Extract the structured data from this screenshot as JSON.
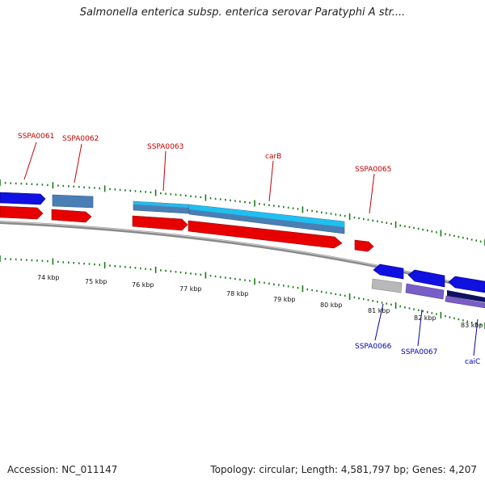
{
  "title": "Salmonella enterica subsp. enterica serovar Paratyphi A str....",
  "accession": "Accession: NC_011147",
  "topology": "Topology: circular; Length: 4,581,797 bp; Genes: 4,207",
  "ticks": [
    "74 kbp",
    "75 kbp",
    "76 kbp",
    "77 kbp",
    "78 kbp",
    "79 kbp",
    "80 kbp",
    "81 kbp",
    "82 kbp",
    "83 kbp"
  ],
  "gene_labels": {
    "top": [
      "SSPA0061",
      "SSPA0062",
      "SSPA0063",
      "carB",
      "SSPA0065"
    ],
    "bottom": [
      "SSPA0066",
      "SSPA0067",
      "caiC"
    ]
  },
  "colors": {
    "forward_cds": "#e80000",
    "reverse_cds": "#1010e0",
    "feature_blue": "#4a7fb5",
    "feature_cyan": "#1ea0e0",
    "feature_purple": "#7a5ec8",
    "feature_navy": "#101060",
    "feature_gray": "#b8b8b8",
    "backbone": "#808080",
    "tick_green": "#1a7a1a",
    "label_red": "#c00000",
    "label_blue": "#0000b0"
  }
}
